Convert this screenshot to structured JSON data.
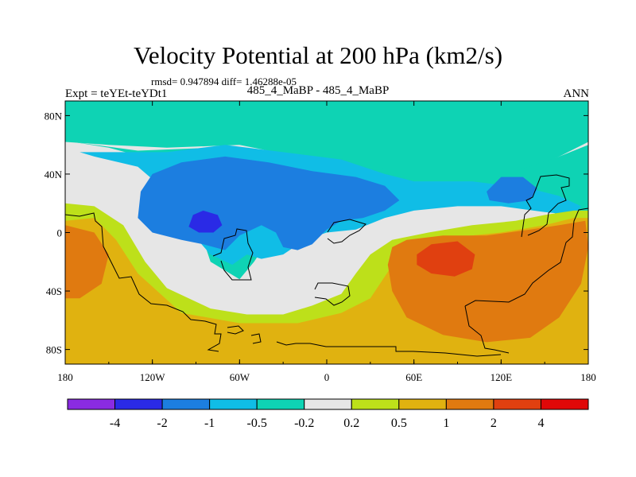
{
  "chart_data": {
    "type": "heatmap",
    "title": "Velocity Potential at 200 hPa (km2/s)",
    "stats": "rmsd= 0.947894 diff= 1.46288e-05",
    "left_label": "Expt = teYEt-teYDt1",
    "center_label": "485_4_MaBP - 485_4_MaBP",
    "right_label": "ANN",
    "x_ticks": [
      {
        "lon": -180,
        "label": "180"
      },
      {
        "lon": -120,
        "label": "120W"
      },
      {
        "lon": -60,
        "label": "60W"
      },
      {
        "lon": 0,
        "label": "0"
      },
      {
        "lon": 60,
        "label": "60E"
      },
      {
        "lon": 120,
        "label": "120E"
      },
      {
        "lon": 180,
        "label": "180"
      }
    ],
    "y_ticks": [
      {
        "lat": 80,
        "label": "80N"
      },
      {
        "lat": 40,
        "label": "40N"
      },
      {
        "lat": 0,
        "label": "0"
      },
      {
        "lat": -40,
        "label": "40S"
      },
      {
        "lat": -80,
        "label": "80S"
      }
    ],
    "xlim": [
      -180,
      180
    ],
    "ylim": [
      -90,
      90
    ],
    "levels": [
      "-4",
      "-2",
      "-1",
      "-0.5",
      "-0.2",
      "0.2",
      "0.5",
      "1",
      "2",
      "4"
    ],
    "colors": [
      "#8a2be2",
      "#2a2ae6",
      "#1c7ee0",
      "#10bde6",
      "#0ed3b4",
      "#e6e6e6",
      "#bde01a",
      "#e0b210",
      "#e07a10",
      "#e04010",
      "#e00808"
    ],
    "regions": [
      {
        "name": "region-neg-0.2",
        "color_index": 4,
        "poly": [
          [
            -180,
            90
          ],
          [
            180,
            90
          ],
          [
            180,
            62
          ],
          [
            160,
            52
          ],
          [
            130,
            40
          ],
          [
            100,
            40
          ],
          [
            60,
            40
          ],
          [
            20,
            45
          ],
          [
            -20,
            52
          ],
          [
            -60,
            60
          ],
          [
            -110,
            58
          ],
          [
            -150,
            60
          ],
          [
            -180,
            62
          ]
        ]
      },
      {
        "name": "region-neg-0.2-tropics",
        "color_index": 4,
        "poly": [
          [
            -175,
            62
          ],
          [
            -150,
            58
          ],
          [
            -120,
            50
          ],
          [
            -100,
            40
          ],
          [
            -90,
            10
          ],
          [
            -80,
            -20
          ],
          [
            -60,
            -32
          ],
          [
            -50,
            -20
          ],
          [
            -40,
            -5
          ],
          [
            -20,
            5
          ],
          [
            0,
            5
          ],
          [
            20,
            5
          ],
          [
            40,
            15
          ],
          [
            60,
            22
          ],
          [
            100,
            25
          ],
          [
            140,
            20
          ],
          [
            165,
            10
          ],
          [
            180,
            8
          ],
          [
            180,
            60
          ],
          [
            160,
            52
          ],
          [
            130,
            42
          ],
          [
            90,
            42
          ],
          [
            50,
            42
          ],
          [
            10,
            48
          ],
          [
            -30,
            54
          ],
          [
            -80,
            58
          ],
          [
            -130,
            56
          ],
          [
            -175,
            62
          ]
        ]
      },
      {
        "name": "region-neg-0.5",
        "color_index": 3,
        "poly": [
          [
            -170,
            55
          ],
          [
            -140,
            55
          ],
          [
            -110,
            55
          ],
          [
            -70,
            60
          ],
          [
            -30,
            55
          ],
          [
            10,
            50
          ],
          [
            40,
            40
          ],
          [
            60,
            35
          ],
          [
            100,
            35
          ],
          [
            140,
            30
          ],
          [
            160,
            25
          ],
          [
            175,
            18
          ],
          [
            170,
            12
          ],
          [
            150,
            14
          ],
          [
            120,
            18
          ],
          [
            90,
            18
          ],
          [
            60,
            15
          ],
          [
            40,
            10
          ],
          [
            20,
            2
          ],
          [
            0,
            0
          ],
          [
            -15,
            -5
          ],
          [
            -30,
            -15
          ],
          [
            -45,
            -18
          ],
          [
            -55,
            -15
          ],
          [
            -65,
            -22
          ],
          [
            -80,
            -15
          ],
          [
            -95,
            2
          ],
          [
            -110,
            28
          ],
          [
            -130,
            45
          ],
          [
            -160,
            52
          ]
        ]
      },
      {
        "name": "region-neg-1",
        "color_index": 2,
        "poly": [
          [
            -120,
            40
          ],
          [
            -100,
            48
          ],
          [
            -70,
            52
          ],
          [
            -40,
            48
          ],
          [
            -10,
            42
          ],
          [
            20,
            38
          ],
          [
            40,
            32
          ],
          [
            50,
            22
          ],
          [
            40,
            15
          ],
          [
            25,
            10
          ],
          [
            10,
            8
          ],
          [
            0,
            2
          ],
          [
            -10,
            -8
          ],
          [
            -20,
            -12
          ],
          [
            -30,
            -10
          ],
          [
            -35,
            0
          ],
          [
            -45,
            5
          ],
          [
            -60,
            -2
          ],
          [
            -70,
            -12
          ],
          [
            -85,
            -8
          ],
          [
            -100,
            -5
          ],
          [
            -120,
            0
          ],
          [
            -130,
            10
          ],
          [
            -128,
            28
          ]
        ]
      },
      {
        "name": "region-neg-1-east",
        "color_index": 2,
        "poly": [
          [
            110,
            28
          ],
          [
            120,
            38
          ],
          [
            135,
            38
          ],
          [
            145,
            30
          ],
          [
            140,
            22
          ],
          [
            125,
            20
          ],
          [
            112,
            22
          ]
        ]
      },
      {
        "name": "region-neg-2",
        "color_index": 1,
        "poly": [
          [
            -92,
            12
          ],
          [
            -85,
            15
          ],
          [
            -75,
            12
          ],
          [
            -72,
            5
          ],
          [
            -78,
            0
          ],
          [
            -88,
            0
          ],
          [
            -95,
            4
          ]
        ]
      },
      {
        "name": "region-pos-0.2",
        "color_index": 6,
        "poly": [
          [
            -180,
            20
          ],
          [
            -160,
            18
          ],
          [
            -140,
            5
          ],
          [
            -125,
            -20
          ],
          [
            -110,
            -38
          ],
          [
            -80,
            -52
          ],
          [
            -55,
            -56
          ],
          [
            -30,
            -56
          ],
          [
            -10,
            -50
          ],
          [
            10,
            -42
          ],
          [
            20,
            -28
          ],
          [
            30,
            -15
          ],
          [
            45,
            -5
          ],
          [
            70,
            0
          ],
          [
            100,
            5
          ],
          [
            130,
            8
          ],
          [
            150,
            12
          ],
          [
            170,
            15
          ],
          [
            180,
            15
          ],
          [
            180,
            -90
          ],
          [
            -180,
            -90
          ]
        ]
      },
      {
        "name": "region-pos-0.5",
        "color_index": 7,
        "poly": [
          [
            -180,
            8
          ],
          [
            -160,
            10
          ],
          [
            -145,
            -5
          ],
          [
            -130,
            -28
          ],
          [
            -100,
            -55
          ],
          [
            -60,
            -62
          ],
          [
            -20,
            -62
          ],
          [
            10,
            -55
          ],
          [
            30,
            -45
          ],
          [
            40,
            -30
          ],
          [
            50,
            -15
          ],
          [
            65,
            -8
          ],
          [
            90,
            -3
          ],
          [
            120,
            0
          ],
          [
            150,
            5
          ],
          [
            170,
            10
          ],
          [
            180,
            10
          ],
          [
            180,
            -90
          ],
          [
            -180,
            -90
          ]
        ]
      },
      {
        "name": "region-pos-1",
        "color_index": 8,
        "poly": [
          [
            -180,
            5
          ],
          [
            -160,
            0
          ],
          [
            -150,
            -15
          ],
          [
            -155,
            -35
          ],
          [
            -170,
            -45
          ],
          [
            -180,
            -45
          ]
        ]
      },
      {
        "name": "region-pos-1-east",
        "color_index": 8,
        "poly": [
          [
            45,
            -10
          ],
          [
            55,
            -5
          ],
          [
            80,
            -2
          ],
          [
            110,
            -2
          ],
          [
            140,
            2
          ],
          [
            160,
            5
          ],
          [
            178,
            8
          ],
          [
            180,
            -10
          ],
          [
            175,
            -35
          ],
          [
            160,
            -58
          ],
          [
            140,
            -72
          ],
          [
            110,
            -75
          ],
          [
            80,
            -70
          ],
          [
            55,
            -58
          ],
          [
            45,
            -40
          ],
          [
            42,
            -22
          ]
        ]
      },
      {
        "name": "region-pos-2",
        "color_index": 9,
        "poly": [
          [
            62,
            -15
          ],
          [
            72,
            -8
          ],
          [
            90,
            -6
          ],
          [
            102,
            -15
          ],
          [
            100,
            -25
          ],
          [
            88,
            -30
          ],
          [
            72,
            -28
          ],
          [
            62,
            -22
          ]
        ]
      }
    ],
    "colorbar": {
      "orientation": "horizontal",
      "placement": "bottom"
    }
  }
}
